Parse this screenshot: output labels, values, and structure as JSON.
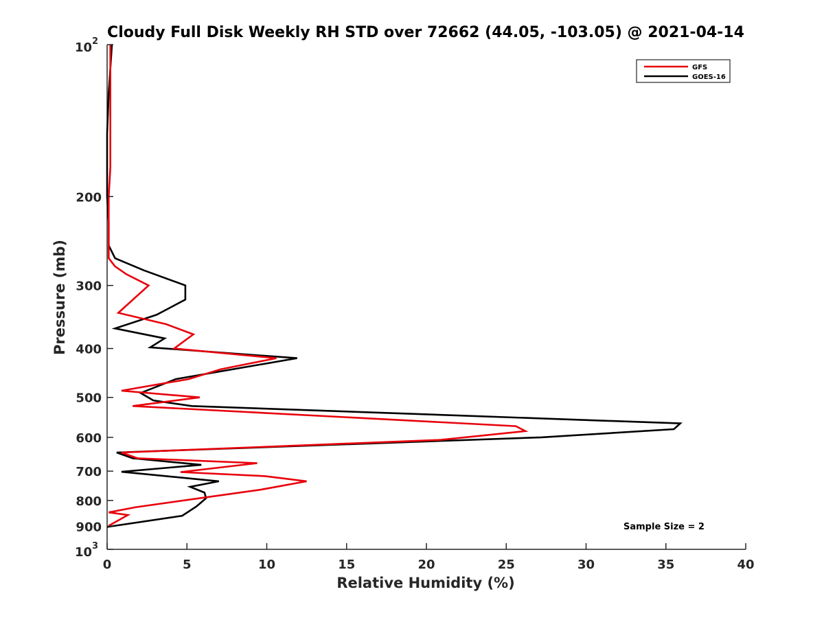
{
  "chart_data": {
    "type": "line",
    "title": "Cloudy Full Disk Weekly RH STD over 72662 (44.05, -103.05) @ 2021-04-14",
    "xlabel": "Relative Humidity (%)",
    "ylabel": "Pressure (mb)",
    "xlim": [
      0,
      40
    ],
    "ylim": [
      100,
      1000
    ],
    "y_scale": "log",
    "y_reversed": true,
    "x_ticks": [
      "0",
      "5",
      "10",
      "15",
      "20",
      "25",
      "30",
      "35",
      "40"
    ],
    "y_ticks": [
      {
        "value": 100,
        "base": "10",
        "exp": "2"
      },
      {
        "value": 200,
        "label": "200"
      },
      {
        "value": 300,
        "label": "300"
      },
      {
        "value": 400,
        "label": "400"
      },
      {
        "value": 500,
        "label": "500"
      },
      {
        "value": 600,
        "label": "600"
      },
      {
        "value": 700,
        "label": "700"
      },
      {
        "value": 800,
        "label": "800"
      },
      {
        "value": 900,
        "label": "900"
      },
      {
        "value": 1000,
        "base": "10",
        "exp": "3"
      }
    ],
    "grid": false,
    "legend_position": "top-right",
    "series": [
      {
        "name": "GFS",
        "color": "#e8000b",
        "points": [
          [
            0.2,
            100
          ],
          [
            0.2,
            125
          ],
          [
            0.2,
            150
          ],
          [
            0.2,
            175
          ],
          [
            0.1,
            200
          ],
          [
            0.1,
            225
          ],
          [
            0.1,
            250
          ],
          [
            0.1,
            265
          ],
          [
            0.5,
            275
          ],
          [
            1.2,
            285
          ],
          [
            2.6,
            300
          ],
          [
            0.7,
            340
          ],
          [
            3.7,
            358
          ],
          [
            5.4,
            375
          ],
          [
            4.2,
            400
          ],
          [
            10.6,
            418
          ],
          [
            7.1,
            440
          ],
          [
            5.1,
            460
          ],
          [
            0.9,
            485
          ],
          [
            5.8,
            500
          ],
          [
            1.6,
            520
          ],
          [
            25.6,
            570
          ],
          [
            26.2,
            583
          ],
          [
            20.9,
            607
          ],
          [
            0.9,
            643
          ],
          [
            1.9,
            660
          ],
          [
            9.4,
            675
          ],
          [
            4.6,
            703
          ],
          [
            9.9,
            716
          ],
          [
            12.5,
            733
          ],
          [
            9.6,
            762
          ],
          [
            1.8,
            825
          ],
          [
            0.1,
            845
          ],
          [
            1.3,
            855
          ],
          [
            0.1,
            898
          ]
        ]
      },
      {
        "name": "GOES-16",
        "color": "#000000",
        "points": [
          [
            0.3,
            100
          ],
          [
            0.1,
            125
          ],
          [
            0.0,
            150
          ],
          [
            0.0,
            175
          ],
          [
            0.0,
            200
          ],
          [
            0.1,
            225
          ],
          [
            0.1,
            250
          ],
          [
            0.5,
            265
          ],
          [
            2.3,
            280
          ],
          [
            4.9,
            300
          ],
          [
            4.9,
            320
          ],
          [
            3.1,
            343
          ],
          [
            0.5,
            365
          ],
          [
            3.6,
            382
          ],
          [
            2.7,
            398
          ],
          [
            11.9,
            418
          ],
          [
            4.3,
            460
          ],
          [
            2.1,
            490
          ],
          [
            2.9,
            507
          ],
          [
            5.3,
            520
          ],
          [
            35.9,
            563
          ],
          [
            35.5,
            578
          ],
          [
            27.2,
            600
          ],
          [
            0.6,
            643
          ],
          [
            1.6,
            660
          ],
          [
            5.9,
            680
          ],
          [
            0.9,
            702
          ],
          [
            7.0,
            733
          ],
          [
            5.2,
            752
          ],
          [
            6.1,
            772
          ],
          [
            6.2,
            792
          ],
          [
            5.6,
            822
          ],
          [
            4.7,
            858
          ],
          [
            0.0,
            903
          ]
        ]
      }
    ],
    "annotations": [
      "Sample Size = 2"
    ]
  }
}
